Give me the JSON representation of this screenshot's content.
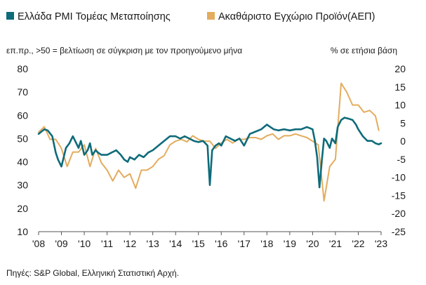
{
  "chart_data": {
    "type": "line",
    "legend": {
      "placement": "top"
    },
    "grid": false,
    "left_axis": {
      "unit_label": "επ.πρ., >50 = βελτίωση σε σύγκριση με τον προηγούμενο μήνα",
      "ylim": [
        10,
        80
      ],
      "ticks": [
        "80",
        "70",
        "60",
        "50",
        "40",
        "30",
        "20",
        "10"
      ]
    },
    "right_axis": {
      "unit_label": "% σε ετήσια βάση",
      "ylim": [
        -25,
        20
      ],
      "ticks": [
        "20",
        "15",
        "10",
        "5",
        "0",
        "-5",
        "-10",
        "-15",
        "-20",
        "-25"
      ]
    },
    "x_axis": {
      "xlim": [
        2008,
        2023
      ],
      "ticks": [
        "'08",
        "'09",
        "'10",
        "'11",
        "'12",
        "'13",
        "'14",
        "'15",
        "'16",
        "'17",
        "'18",
        "'19",
        "'20",
        "'21",
        "'22",
        "'23"
      ]
    },
    "series": [
      {
        "name": "Ελλάδα PMI Τομέας Μεταποίησης",
        "axis": "left",
        "color": "#0e6b7a",
        "x": [
          2008.0,
          2008.25,
          2008.4,
          2008.6,
          2008.75,
          2008.85,
          2009.0,
          2009.1,
          2009.2,
          2009.35,
          2009.5,
          2009.65,
          2009.75,
          2009.85,
          2010.0,
          2010.15,
          2010.25,
          2010.35,
          2010.5,
          2010.6,
          2010.75,
          2011.0,
          2011.2,
          2011.4,
          2011.6,
          2011.75,
          2011.9,
          2012.0,
          2012.2,
          2012.4,
          2012.6,
          2012.8,
          2013.0,
          2013.25,
          2013.5,
          2013.75,
          2014.0,
          2014.2,
          2014.4,
          2014.6,
          2014.8,
          2015.0,
          2015.2,
          2015.4,
          2015.45,
          2015.5,
          2015.6,
          2015.75,
          2015.9,
          2016.0,
          2016.2,
          2016.4,
          2016.6,
          2016.8,
          2017.0,
          2017.25,
          2017.5,
          2017.75,
          2018.0,
          2018.15,
          2018.3,
          2018.5,
          2018.75,
          2019.0,
          2019.25,
          2019.5,
          2019.75,
          2020.0,
          2020.1,
          2020.2,
          2020.3,
          2020.4,
          2020.5,
          2020.6,
          2020.75,
          2020.85,
          2021.0,
          2021.1,
          2021.25,
          2021.4,
          2021.6,
          2021.75,
          2021.9,
          2022.0,
          2022.2,
          2022.4,
          2022.6,
          2022.75,
          2022.9,
          2023.0
        ],
        "values": [
          52,
          54,
          53.5,
          51,
          44,
          41,
          38,
          42,
          46,
          48,
          51,
          48,
          46,
          49,
          43,
          45,
          48,
          43,
          45,
          44,
          43,
          43,
          44,
          45,
          43,
          41,
          40,
          42,
          41,
          43,
          42,
          44,
          45,
          47,
          49,
          51,
          51,
          50,
          51,
          50,
          49,
          48.5,
          49,
          47,
          38,
          30,
          45,
          47,
          48,
          47,
          51,
          50,
          49,
          50,
          47,
          52,
          53,
          54,
          56,
          55,
          54,
          53.5,
          54,
          53.5,
          54,
          54,
          55,
          54,
          49,
          42,
          29,
          40,
          50,
          49,
          46,
          50,
          48,
          55,
          58,
          59,
          58.5,
          58,
          56,
          54,
          51,
          49,
          49,
          48,
          47.5,
          48
        ]
      },
      {
        "name": "Ακαθάριστο Εγχώριο Προϊόν(ΑΕΠ)",
        "axis": "right",
        "color": "#e3ac5e",
        "x": [
          2008.0,
          2008.25,
          2008.5,
          2008.75,
          2009.0,
          2009.25,
          2009.5,
          2009.75,
          2010.0,
          2010.25,
          2010.5,
          2010.75,
          2011.0,
          2011.25,
          2011.5,
          2011.75,
          2012.0,
          2012.25,
          2012.5,
          2012.75,
          2013.0,
          2013.25,
          2013.5,
          2013.75,
          2014.0,
          2014.25,
          2014.5,
          2014.75,
          2015.0,
          2015.25,
          2015.5,
          2015.75,
          2016.0,
          2016.25,
          2016.5,
          2016.75,
          2017.0,
          2017.25,
          2017.5,
          2017.75,
          2018.0,
          2018.25,
          2018.5,
          2018.75,
          2019.0,
          2019.25,
          2019.5,
          2019.75,
          2020.0,
          2020.25,
          2020.5,
          2020.75,
          2021.0,
          2021.25,
          2021.5,
          2021.75,
          2022.0,
          2022.25,
          2022.5,
          2022.75,
          2022.9
        ],
        "values": [
          2.5,
          4,
          0.5,
          0.5,
          -2,
          -7,
          -3,
          -3,
          -1,
          -7,
          -2,
          -6,
          -8,
          -11,
          -8,
          -10,
          -9,
          -13,
          -8,
          -8,
          -7,
          -5,
          -4,
          -1,
          0,
          0.5,
          -0.2,
          1.5,
          0.5,
          0,
          0,
          -2,
          -0.5,
          0.5,
          -0.5,
          0.5,
          0.5,
          1,
          1,
          0.5,
          1.5,
          2,
          0.5,
          1.5,
          1.5,
          2,
          1.5,
          1,
          0,
          -1,
          -16.5,
          -7,
          -5,
          16,
          13.5,
          10,
          10,
          8,
          8.5,
          7,
          3
        ]
      }
    ],
    "source": "Πηγές: S&P Global, Ελληνική Στατιστική Αρχή."
  }
}
